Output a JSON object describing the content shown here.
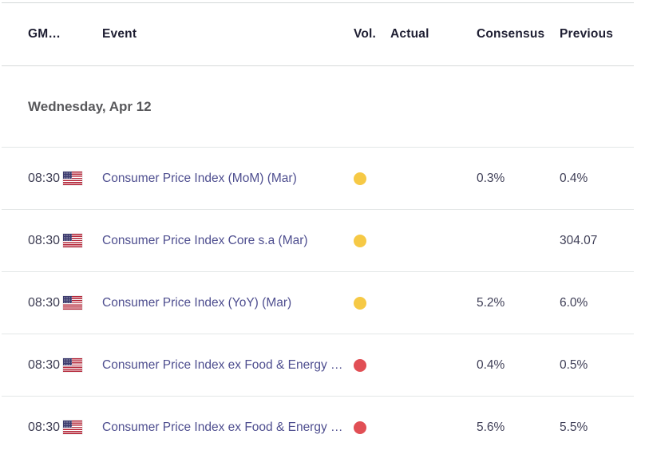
{
  "colors": {
    "volatility_medium_dot": "#F6C945",
    "volatility_high_dot": "#E14F55",
    "event_link_text": "#4E4E8F"
  },
  "table": {
    "headers": {
      "gmt": "GM…",
      "event": "Event",
      "vol": "Vol.",
      "actual": "Actual",
      "consensus": "Consensus",
      "previous": "Previous"
    },
    "date_header": "Wednesday, Apr 12",
    "rows": [
      {
        "time": "08:30",
        "flag": "us",
        "event": "Consumer Price Index (MoM) (Mar)",
        "volatility": "medium",
        "vol_color": "#F6C945",
        "actual": "",
        "consensus": "0.3%",
        "previous": "0.4%"
      },
      {
        "time": "08:30",
        "flag": "us",
        "event": "Consumer Price Index Core s.a (Mar)",
        "volatility": "medium",
        "vol_color": "#F6C945",
        "actual": "",
        "consensus": "",
        "previous": "304.07"
      },
      {
        "time": "08:30",
        "flag": "us",
        "event": "Consumer Price Index (YoY) (Mar)",
        "volatility": "medium",
        "vol_color": "#F6C945",
        "actual": "",
        "consensus": "5.2%",
        "previous": "6.0%"
      },
      {
        "time": "08:30",
        "flag": "us",
        "event": "Consumer Price Index ex Food & Energy …",
        "volatility": "high",
        "vol_color": "#E14F55",
        "actual": "",
        "consensus": "0.4%",
        "previous": "0.5%"
      },
      {
        "time": "08:30",
        "flag": "us",
        "event": "Consumer Price Index ex Food & Energy …",
        "volatility": "high",
        "vol_color": "#E14F55",
        "actual": "",
        "consensus": "5.6%",
        "previous": "5.5%"
      }
    ]
  }
}
